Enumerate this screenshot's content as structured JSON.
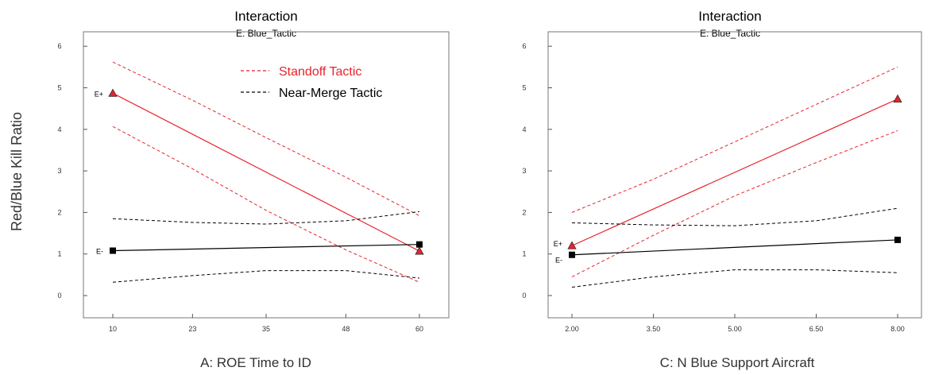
{
  "figure": {
    "ylabel": "Red/Blue Kill Ratio"
  },
  "chart_data": [
    {
      "type": "line",
      "title": "Interaction",
      "subtitle": "E: Blue_Tactic",
      "xlabel": "A: ROE Time to ID",
      "ylabel": "Red/Blue Kill Ratio",
      "xlim": [
        10,
        60
      ],
      "ylim": [
        0,
        6
      ],
      "x_ticks": [
        10,
        23,
        35,
        48,
        60
      ],
      "x_tick_labels": [
        "10",
        "23",
        "35",
        "48",
        "60"
      ],
      "y_ticks": [
        0,
        1,
        2,
        3,
        4,
        5,
        6
      ],
      "y_tick_labels": [
        "0",
        "1",
        "2",
        "3",
        "4",
        "5",
        "6"
      ],
      "grid": false,
      "legend": {
        "placement": "top-center",
        "entries": [
          {
            "name": "Standoff Tactic",
            "color": "#e8222a",
            "style": "dashed"
          },
          {
            "name": "Near-Merge Tactic",
            "color": "#000000",
            "style": "dashed"
          }
        ]
      },
      "series": [
        {
          "name": "E+",
          "color": "#e8222a",
          "marker": "triangle",
          "x": [
            10,
            60
          ],
          "y": [
            4.87,
            1.07
          ],
          "ci_upper": {
            "x": [
              10,
              23,
              35,
              48,
              60
            ],
            "y": [
              5.62,
              4.7,
              3.8,
              2.85,
              1.92
            ]
          },
          "ci_lower": {
            "x": [
              10,
              23,
              35,
              48,
              60
            ],
            "y": [
              4.07,
              3.05,
              2.05,
              1.1,
              0.32
            ]
          }
        },
        {
          "name": "E-",
          "color": "#000000",
          "marker": "square",
          "x": [
            10,
            60
          ],
          "y": [
            1.08,
            1.23
          ],
          "ci_upper": {
            "x": [
              10,
              23,
              35,
              48,
              60
            ],
            "y": [
              1.85,
              1.76,
              1.72,
              1.8,
              2.02
            ]
          },
          "ci_lower": {
            "x": [
              10,
              23,
              35,
              48,
              60
            ],
            "y": [
              0.32,
              0.48,
              0.6,
              0.6,
              0.42
            ]
          }
        }
      ]
    },
    {
      "type": "line",
      "title": "Interaction",
      "subtitle": "E: Blue_Tactic",
      "xlabel": "C: N Blue Support Aircraft",
      "ylabel": "Red/Blue Kill Ratio",
      "xlim": [
        2,
        8
      ],
      "ylim": [
        0,
        6
      ],
      "x_ticks": [
        2,
        3.5,
        5,
        6.5,
        8
      ],
      "x_tick_labels": [
        "2.00",
        "3.50",
        "5.00",
        "6.50",
        "8.00"
      ],
      "y_ticks": [
        0,
        1,
        2,
        3,
        4,
        5,
        6
      ],
      "y_tick_labels": [
        "0",
        "1",
        "2",
        "3",
        "4",
        "5",
        "6"
      ],
      "grid": false,
      "series": [
        {
          "name": "E+",
          "color": "#e8222a",
          "marker": "triangle",
          "x": [
            2,
            8
          ],
          "y": [
            1.2,
            4.73
          ],
          "ci_upper": {
            "x": [
              2,
              3.5,
              5,
              6.5,
              8
            ],
            "y": [
              2.0,
              2.8,
              3.7,
              4.6,
              5.5
            ]
          },
          "ci_lower": {
            "x": [
              2,
              3.5,
              5,
              6.5,
              8
            ],
            "y": [
              0.45,
              1.45,
              2.4,
              3.2,
              3.97
            ]
          }
        },
        {
          "name": "E-",
          "color": "#000000",
          "marker": "square",
          "x": [
            2,
            8
          ],
          "y": [
            0.98,
            1.34
          ],
          "ci_upper": {
            "x": [
              2,
              3.5,
              5,
              6.5,
              8
            ],
            "y": [
              1.75,
              1.7,
              1.68,
              1.8,
              2.1
            ]
          },
          "ci_lower": {
            "x": [
              2,
              3.5,
              5,
              6.5,
              8
            ],
            "y": [
              0.2,
              0.45,
              0.62,
              0.62,
              0.55
            ]
          }
        }
      ]
    }
  ]
}
